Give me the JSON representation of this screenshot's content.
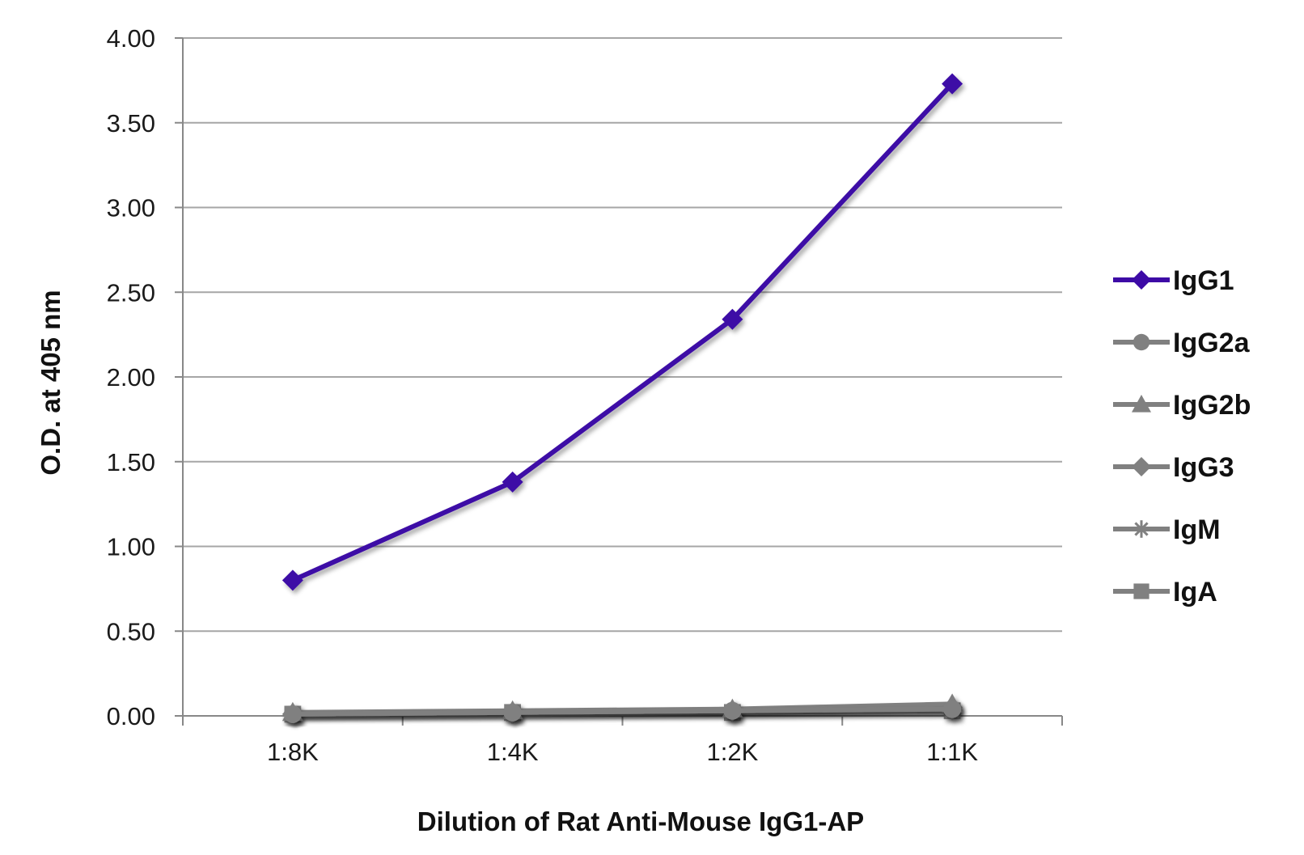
{
  "chart_data": {
    "type": "line",
    "xlabel": "Dilution of Rat Anti-Mouse IgG1-AP",
    "ylabel": "O.D. at 405 nm",
    "categories": [
      "1:8K",
      "1:4K",
      "1:2K",
      "1:1K"
    ],
    "ylim": [
      0,
      4
    ],
    "yticks": [
      "0.00",
      "0.50",
      "1.00",
      "1.50",
      "2.00",
      "2.50",
      "3.00",
      "3.50",
      "4.00"
    ],
    "grid": true,
    "legend_position": "right",
    "series": [
      {
        "name": "IgG1",
        "values": [
          0.8,
          1.38,
          2.34,
          3.73
        ],
        "color": "#3d0aa6",
        "marker": "diamond"
      },
      {
        "name": "IgG2a",
        "values": [
          0.01,
          0.02,
          0.03,
          0.04
        ],
        "color": "#808080",
        "marker": "circle"
      },
      {
        "name": "IgG2b",
        "values": [
          0.02,
          0.03,
          0.04,
          0.07
        ],
        "color": "#808080",
        "marker": "triangle"
      },
      {
        "name": "IgG3",
        "values": [
          0.01,
          0.02,
          0.03,
          0.05
        ],
        "color": "#808080",
        "marker": "diamond"
      },
      {
        "name": "IgM",
        "values": [
          0.01,
          0.01,
          0.02,
          0.03
        ],
        "color": "#808080",
        "marker": "star"
      },
      {
        "name": "IgA",
        "values": [
          0.01,
          0.02,
          0.02,
          0.03
        ],
        "color": "#808080",
        "marker": "square"
      }
    ]
  }
}
